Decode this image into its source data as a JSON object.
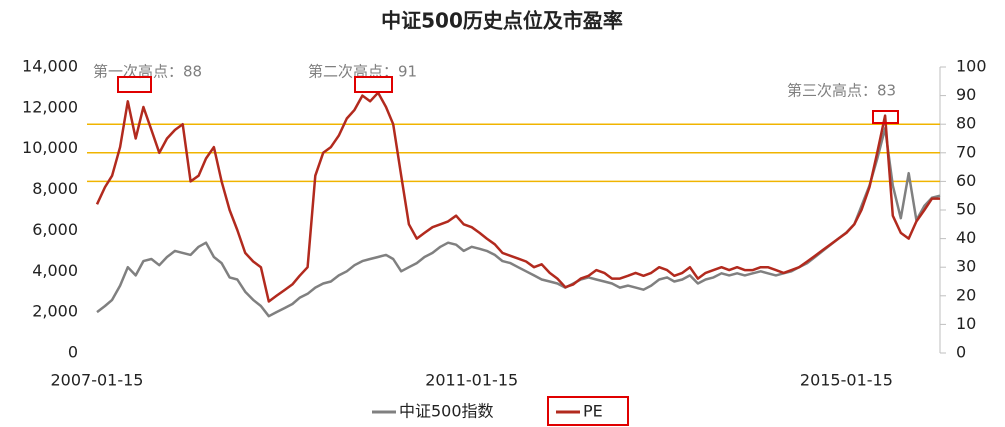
{
  "chart_data": {
    "type": "line",
    "title": "中证500历史点位及市盈率",
    "annotations": [
      "第一次高点：88",
      "第二次高点：91",
      "第三次高点：83"
    ],
    "x": [
      "2007-01-15",
      "2007-02-15",
      "2007-03-15",
      "2007-04-15",
      "2007-05-15",
      "2007-06-15",
      "2007-07-15",
      "2007-08-15",
      "2007-09-15",
      "2007-10-15",
      "2007-11-15",
      "2007-12-15",
      "2008-01-15",
      "2008-02-15",
      "2008-03-15",
      "2008-04-15",
      "2008-05-15",
      "2008-06-15",
      "2008-07-15",
      "2008-08-15",
      "2008-09-15",
      "2008-10-15",
      "2008-11-15",
      "2008-12-15",
      "2009-01-15",
      "2009-02-15",
      "2009-03-15",
      "2009-04-15",
      "2009-05-15",
      "2009-06-15",
      "2009-07-15",
      "2009-08-15",
      "2009-09-15",
      "2009-10-15",
      "2009-11-15",
      "2009-12-15",
      "2010-01-15",
      "2010-02-15",
      "2010-03-15",
      "2010-04-15",
      "2010-05-15",
      "2010-06-15",
      "2010-07-15",
      "2010-08-15",
      "2010-09-15",
      "2010-10-15",
      "2010-11-15",
      "2010-12-15",
      "2011-01-15",
      "2011-02-15",
      "2011-03-15",
      "2011-04-15",
      "2011-05-15",
      "2011-06-15",
      "2011-07-15",
      "2011-08-15",
      "2011-09-15",
      "2011-10-15",
      "2011-11-15",
      "2011-12-15",
      "2012-01-15",
      "2012-02-15",
      "2012-03-15",
      "2012-04-15",
      "2012-05-15",
      "2012-06-15",
      "2012-07-15",
      "2012-08-15",
      "2012-09-15",
      "2012-10-15",
      "2012-11-15",
      "2012-12-15",
      "2013-01-15",
      "2013-02-15",
      "2013-03-15",
      "2013-04-15",
      "2013-05-15",
      "2013-06-15",
      "2013-07-15",
      "2013-08-15",
      "2013-09-15",
      "2013-10-15",
      "2013-11-15",
      "2013-12-15",
      "2014-01-15",
      "2014-02-15",
      "2014-03-15",
      "2014-04-15",
      "2014-05-15",
      "2014-06-15",
      "2014-07-15",
      "2014-08-15",
      "2014-09-15",
      "2014-10-15",
      "2014-11-15",
      "2014-12-15",
      "2015-01-15",
      "2015-02-15",
      "2015-03-15",
      "2015-04-15",
      "2015-05-15",
      "2015-06-15",
      "2015-07-15",
      "2015-08-15",
      "2015-09-15",
      "2015-10-15",
      "2015-11-15",
      "2015-12-15",
      "2016-01-15"
    ],
    "series": [
      {
        "name": "中证500指数",
        "color": "#808080",
        "axis": "y",
        "values": [
          2000,
          2300,
          2600,
          3300,
          4200,
          3800,
          4500,
          4600,
          4300,
          4700,
          5000,
          4900,
          4800,
          5200,
          5400,
          4700,
          4400,
          3700,
          3600,
          3000,
          2600,
          2300,
          1800,
          2000,
          2200,
          2400,
          2700,
          2900,
          3200,
          3400,
          3500,
          3800,
          4000,
          4300,
          4500,
          4600,
          4700,
          4800,
          4600,
          4000,
          4200,
          4400,
          4700,
          4900,
          5200,
          5400,
          5300,
          5000,
          5200,
          5100,
          5000,
          4800,
          4500,
          4400,
          4200,
          4000,
          3800,
          3600,
          3500,
          3400,
          3200,
          3400,
          3600,
          3700,
          3600,
          3500,
          3400,
          3200,
          3300,
          3200,
          3100,
          3300,
          3600,
          3700,
          3500,
          3600,
          3800,
          3400,
          3600,
          3700,
          3900,
          3800,
          3900,
          3800,
          3900,
          4000,
          3900,
          3800,
          3900,
          4000,
          4200,
          4400,
          4700,
          5000,
          5300,
          5600,
          5900,
          6300,
          7200,
          8200,
          9500,
          11000,
          8200,
          6600,
          8800,
          6500,
          7200,
          7600,
          7700
        ]
      },
      {
        "name": "PE",
        "color": "#b22a1e",
        "axis": "y2",
        "values": [
          52,
          58,
          62,
          72,
          88,
          75,
          86,
          78,
          70,
          75,
          78,
          80,
          60,
          62,
          68,
          72,
          60,
          50,
          43,
          35,
          32,
          30,
          18,
          20,
          22,
          24,
          27,
          30,
          62,
          70,
          72,
          76,
          82,
          85,
          90,
          88,
          91,
          86,
          80,
          62,
          45,
          40,
          42,
          44,
          45,
          46,
          48,
          45,
          44,
          42,
          40,
          38,
          35,
          34,
          33,
          32,
          30,
          31,
          28,
          26,
          23,
          24,
          26,
          27,
          29,
          28,
          26,
          26,
          27,
          28,
          27,
          28,
          30,
          29,
          27,
          28,
          30,
          26,
          28,
          29,
          30,
          29,
          30,
          29,
          29,
          30,
          30,
          29,
          28,
          29,
          30,
          32,
          34,
          36,
          38,
          40,
          42,
          45,
          50,
          58,
          70,
          83,
          48,
          42,
          40,
          46,
          50,
          54,
          54
        ]
      }
    ],
    "reference_lines": {
      "axis": "y2",
      "color": "#f0b400",
      "values": [
        60,
        70,
        80
      ]
    },
    "xlim": [
      "2007-01-15",
      "2016-01-15"
    ],
    "xticks": [
      "2007-01-15",
      "2011-01-15",
      "2015-01-15"
    ],
    "ylim": [
      0,
      14000
    ],
    "yticks": [
      0,
      {
        "value": 2000,
        "label": "2,000"
      },
      {
        "value": 4000,
        "label": "4,000"
      },
      {
        "value": 6000,
        "label": "6,000"
      },
      {
        "value": 8000,
        "label": "8,000"
      },
      {
        "value": 10000,
        "label": "10,000"
      },
      {
        "value": 12000,
        "label": "12,000"
      },
      {
        "value": 14000,
        "label": "14,000"
      }
    ],
    "y2lim": [
      0,
      100
    ],
    "y2ticks": [
      0,
      10,
      20,
      30,
      40,
      50,
      60,
      70,
      80,
      90,
      100
    ],
    "legend": "bottom"
  }
}
